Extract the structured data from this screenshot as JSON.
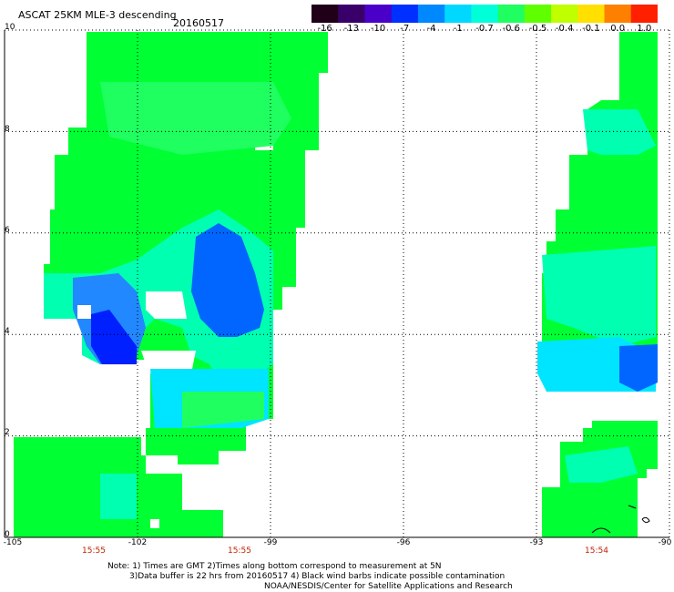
{
  "header": {
    "title": "ASCAT 25KM MLE-3 descending",
    "date": "20160517"
  },
  "colorbar": {
    "labels": [
      "-16",
      "-13",
      "-10",
      "-7",
      "-4",
      "-1",
      "-0.7",
      "-0.6",
      "-0.5",
      "-0.4",
      "-0.1",
      "0.0",
      "1.0"
    ],
    "colors": [
      "#200018",
      "#3a006a",
      "#4a00c8",
      "#0030ff",
      "#0088ff",
      "#00d8ff",
      "#00ffd8",
      "#20ff60",
      "#60ff00",
      "#c0ff00",
      "#ffe000",
      "#ff8000",
      "#ff2000"
    ]
  },
  "axes": {
    "y_labels": [
      "10",
      "8",
      "6",
      "4",
      "2",
      "0"
    ],
    "x_labels": [
      "-105",
      "-102",
      "-99",
      "-96",
      "-93",
      "-90"
    ],
    "time_labels": [
      "15:55",
      "15:55",
      "15:54"
    ]
  },
  "footer": {
    "line1": "Note: 1) Times are GMT 2)Times along bottom correspond to measurement at 5N",
    "line2": "3)Data buffer is 22 hrs from 20160517 4) Black wind barbs indicate possible contamination",
    "line3": "NOAA/NESDIS/Center for Satellite Applications and Research"
  },
  "palette": {
    "green": "#00ff33",
    "green_light": "#20ff60",
    "cyan_green": "#00ffb0",
    "cyan": "#00e5ff",
    "blue": "#0066ff",
    "dark_blue": "#0020ff",
    "lime": "#66ff00"
  }
}
